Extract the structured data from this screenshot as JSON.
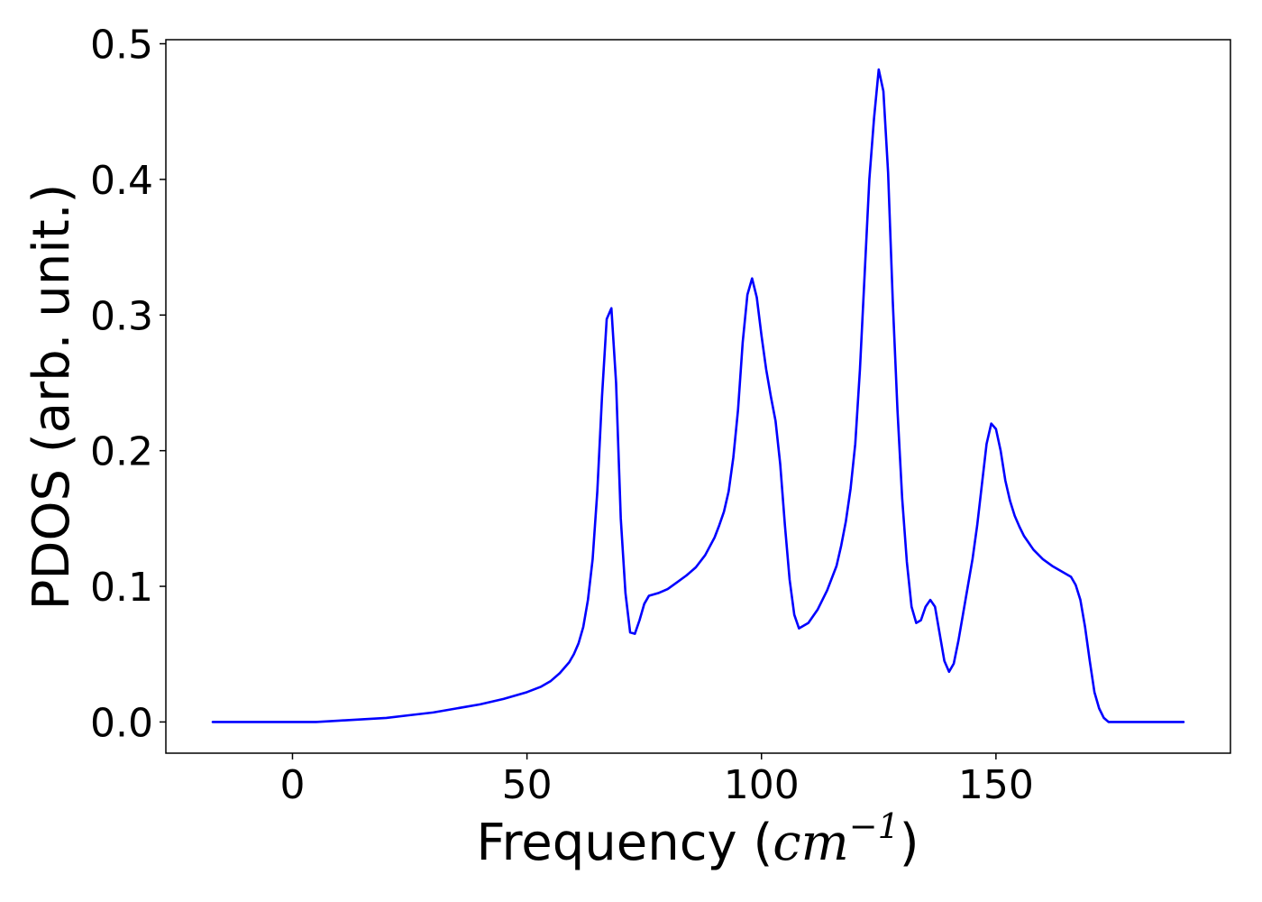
{
  "chart_data": {
    "type": "line",
    "title": "",
    "xlabel_prefix": "Frequency (",
    "xlabel_math": "cm",
    "xlabel_sup": "−1",
    "xlabel_suffix": ")",
    "ylabel": "PDOS (arb. unit.)",
    "xlim": [
      -27,
      200
    ],
    "ylim": [
      -0.023,
      0.503
    ],
    "xticks": [
      0,
      50,
      100,
      150
    ],
    "xtick_labels": [
      "0",
      "50",
      "100",
      "150"
    ],
    "yticks": [
      0.0,
      0.1,
      0.2,
      0.3,
      0.4,
      0.5
    ],
    "ytick_labels": [
      "0.0",
      "0.1",
      "0.2",
      "0.3",
      "0.4",
      "0.5"
    ],
    "grid": false,
    "series": [
      {
        "color": "#0000ff",
        "x": [
          -17,
          -10,
          0,
          5,
          10,
          15,
          20,
          25,
          30,
          35,
          40,
          45,
          48,
          50,
          53,
          55,
          57,
          58,
          59,
          60,
          61,
          62,
          63,
          64,
          65,
          66,
          67,
          68,
          69,
          70,
          71,
          72,
          73,
          74,
          75,
          76,
          78,
          80,
          82,
          84,
          86,
          88,
          90,
          91,
          92,
          93,
          94,
          95,
          96,
          97,
          98,
          99,
          100,
          101,
          102,
          103,
          104,
          105,
          106,
          107,
          108,
          110,
          112,
          114,
          116,
          117,
          118,
          119,
          120,
          121,
          122,
          123,
          124,
          125,
          126,
          127,
          128,
          129,
          130,
          131,
          132,
          133,
          134,
          135,
          136,
          137,
          138,
          139,
          140,
          141,
          142,
          143,
          144,
          145,
          146,
          147,
          148,
          149,
          150,
          151,
          152,
          153,
          154,
          155,
          156,
          158,
          160,
          162,
          164,
          166,
          167,
          168,
          169,
          170,
          171,
          172,
          173,
          174,
          175,
          176,
          177,
          178,
          180,
          190
        ],
        "y": [
          0.0,
          0.0,
          0.0,
          0.0,
          0.001,
          0.002,
          0.003,
          0.005,
          0.007,
          0.01,
          0.013,
          0.017,
          0.02,
          0.022,
          0.026,
          0.03,
          0.036,
          0.04,
          0.044,
          0.05,
          0.058,
          0.07,
          0.09,
          0.12,
          0.17,
          0.24,
          0.297,
          0.305,
          0.25,
          0.15,
          0.095,
          0.066,
          0.065,
          0.075,
          0.087,
          0.093,
          0.095,
          0.098,
          0.103,
          0.108,
          0.114,
          0.123,
          0.136,
          0.145,
          0.155,
          0.17,
          0.195,
          0.23,
          0.28,
          0.315,
          0.327,
          0.313,
          0.285,
          0.26,
          0.24,
          0.222,
          0.19,
          0.145,
          0.105,
          0.079,
          0.069,
          0.073,
          0.083,
          0.097,
          0.115,
          0.13,
          0.148,
          0.172,
          0.205,
          0.26,
          0.33,
          0.4,
          0.445,
          0.481,
          0.465,
          0.405,
          0.31,
          0.23,
          0.165,
          0.118,
          0.085,
          0.073,
          0.075,
          0.085,
          0.09,
          0.085,
          0.065,
          0.045,
          0.037,
          0.043,
          0.06,
          0.08,
          0.1,
          0.12,
          0.145,
          0.175,
          0.205,
          0.22,
          0.216,
          0.2,
          0.178,
          0.163,
          0.152,
          0.144,
          0.137,
          0.127,
          0.12,
          0.115,
          0.111,
          0.107,
          0.101,
          0.09,
          0.07,
          0.045,
          0.022,
          0.01,
          0.003,
          0.0,
          0.0,
          0.0,
          0.0,
          0.0,
          0.0,
          0.0
        ]
      }
    ]
  }
}
